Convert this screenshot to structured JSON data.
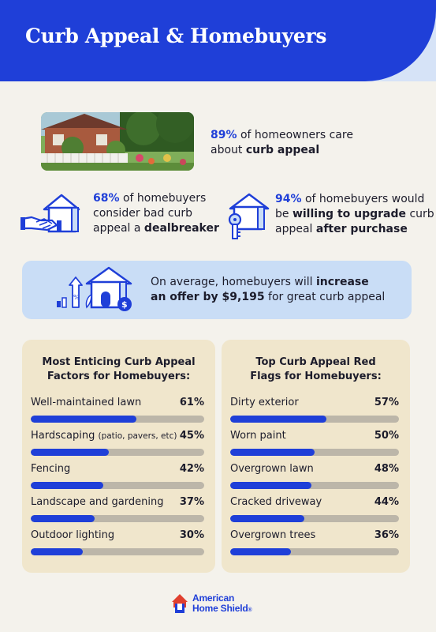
{
  "header": {
    "title": "Curb Appeal & Homebuyers"
  },
  "stats": {
    "care": {
      "pct": "89%",
      "text1": " of homeowners care",
      "text2": "about ",
      "bold": "curb appeal"
    },
    "dealbreaker": {
      "pct": "68%",
      "text1": " of homebuyers",
      "text2": "consider bad curb",
      "text3": "appeal a ",
      "bold": "dealbreaker"
    },
    "upgrade": {
      "pct": "94%",
      "text1": " of homebuyers would",
      "text2": "be ",
      "bold1": "willing to upgrade",
      "text3": " curb",
      "text4": "appeal ",
      "bold2": "after purchase"
    },
    "offer": {
      "text1": "On average, homebuyers will ",
      "bold1": "increase",
      "bold2": "an offer by $9,195",
      "text2": " for great curb appeal"
    }
  },
  "colors": {
    "accent": "#1f3fd8",
    "panel": "#f0e6cc",
    "offer_bg": "#c9ddf6",
    "track": "#bcb6a9"
  },
  "icons": [
    "house-photo",
    "handshake-house-icon",
    "house-key-icon",
    "house-money-icon"
  ],
  "panels": {
    "factors": {
      "title1": "Most Enticing Curb Appeal",
      "title2": "Factors for Homebuyers:",
      "items": [
        {
          "label": "Well-maintained lawn",
          "sub": "",
          "value": "61%",
          "pct": 61
        },
        {
          "label": "Hardscaping ",
          "sub": "(patio, pavers, etc)",
          "value": "45%",
          "pct": 45
        },
        {
          "label": "Fencing",
          "sub": "",
          "value": "42%",
          "pct": 42
        },
        {
          "label": "Landscape and gardening",
          "sub": "",
          "value": "37%",
          "pct": 37
        },
        {
          "label": "Outdoor lighting",
          "sub": "",
          "value": "30%",
          "pct": 30
        }
      ]
    },
    "flags": {
      "title1": "Top Curb Appeal Red",
      "title2": "Flags for Homebuyers:",
      "items": [
        {
          "label": "Dirty exterior",
          "sub": "",
          "value": "57%",
          "pct": 57
        },
        {
          "label": "Worn paint",
          "sub": "",
          "value": "50%",
          "pct": 50
        },
        {
          "label": "Overgrown lawn",
          "sub": "",
          "value": "48%",
          "pct": 48
        },
        {
          "label": "Cracked driveway",
          "sub": "",
          "value": "44%",
          "pct": 44
        },
        {
          "label": "Overgrown trees",
          "sub": "",
          "value": "36%",
          "pct": 36
        }
      ]
    }
  },
  "brand": {
    "line1": "American",
    "line2": "Home Shield",
    "mark": "®"
  }
}
